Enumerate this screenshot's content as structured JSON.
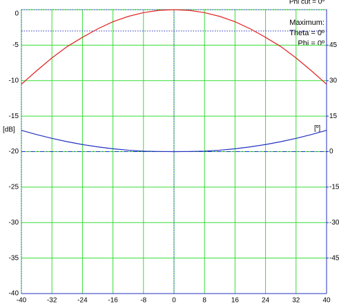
{
  "chart_data": {
    "type": "line",
    "x": [
      -40,
      -36,
      -32,
      -28,
      -24,
      -20,
      -16,
      -12,
      -8,
      -4,
      0,
      4,
      8,
      12,
      16,
      20,
      24,
      28,
      32,
      36,
      40
    ],
    "series": [
      {
        "color": "#e02020",
        "values": [
          -10.5,
          -8.6,
          -6.8,
          -5.2,
          -3.9,
          -2.7,
          -1.7,
          -0.95,
          -0.42,
          -0.1,
          0,
          -0.1,
          -0.42,
          -0.95,
          -1.7,
          -2.7,
          -3.9,
          -5.2,
          -6.8,
          -8.6,
          -10.5
        ]
      },
      {
        "color": "#2030c0",
        "axis": "y2",
        "values": [
          9,
          7.2,
          5.6,
          4.2,
          3,
          2,
          1.2,
          0.6,
          0.2,
          0.05,
          0,
          0.05,
          0.2,
          0.6,
          1.2,
          2,
          3,
          4.2,
          5.6,
          7.2,
          9
        ]
      }
    ],
    "xlim": [
      -40,
      40
    ],
    "xticks": [
      -40,
      -32,
      -24,
      -16,
      -8,
      0,
      8,
      16,
      24,
      32,
      40
    ],
    "ylim": [
      -40,
      0
    ],
    "yticks": [
      -40,
      -35,
      -30,
      -25,
      -20,
      -15,
      -10,
      -5,
      0
    ],
    "y2lim": [
      -60,
      60
    ],
    "y2ticks": [
      -45,
      -30,
      -15,
      0,
      15,
      30,
      45
    ],
    "ylabel": "[dB]",
    "y2label": "[º]",
    "hlines": [
      -3,
      -20
    ],
    "vlines": [
      0
    ],
    "grid": true,
    "grid_color": "#33dd33",
    "annotations": [
      "Phi cut = 0º",
      "Maximum:",
      "Theta = 0º",
      "Phi = 0º"
    ]
  }
}
